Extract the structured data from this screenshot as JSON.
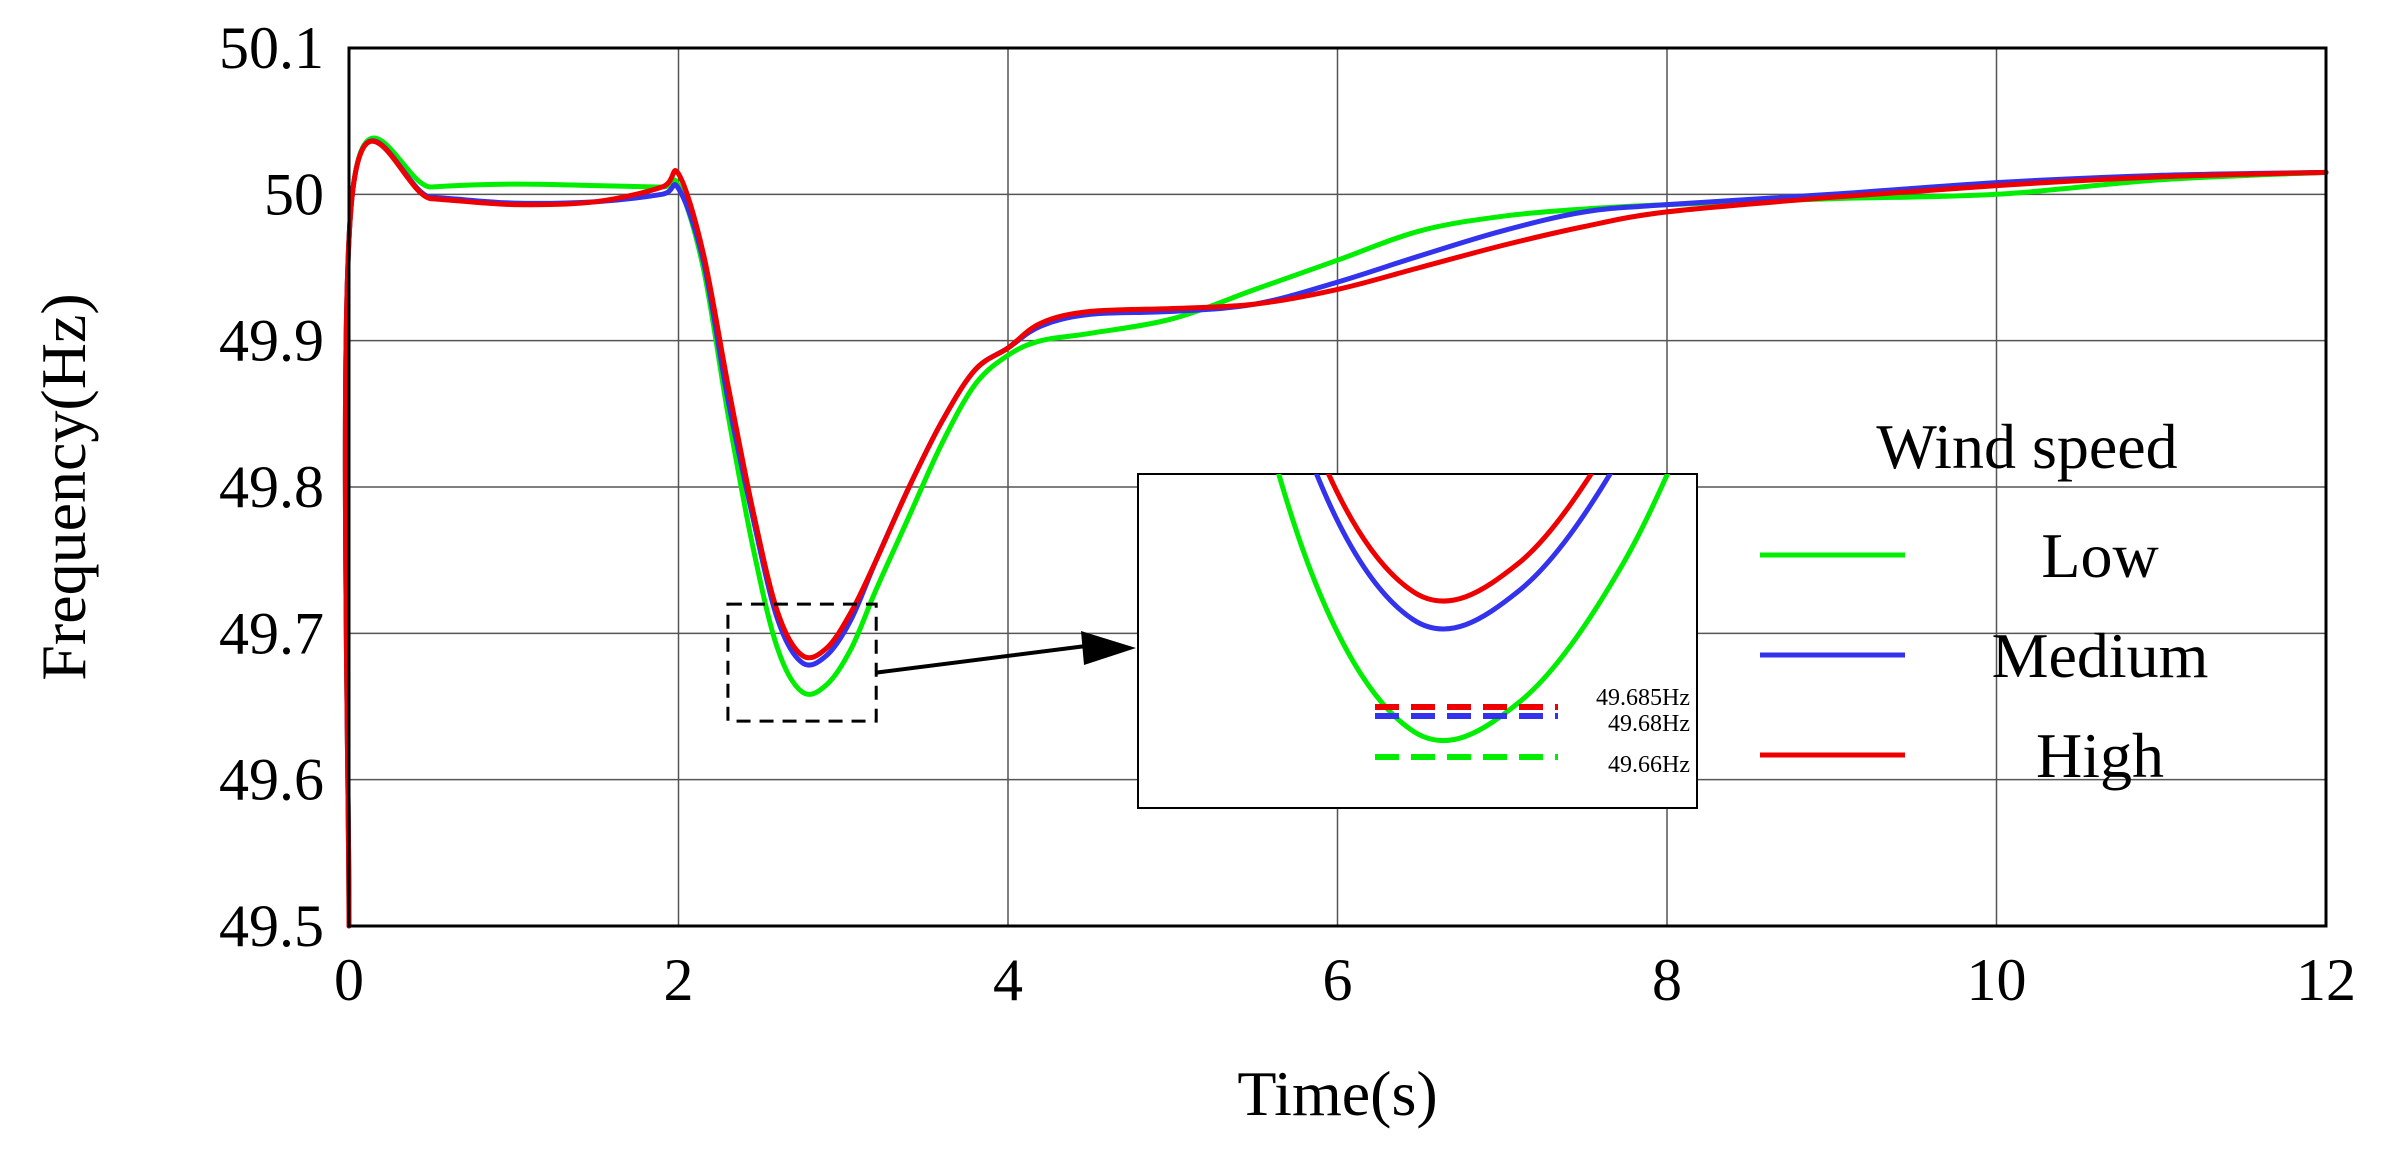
{
  "chart_data": {
    "type": "line",
    "xlabel": "Time(s)",
    "ylabel": "Frequency(Hz)",
    "xlim": [
      0,
      12
    ],
    "ylim": [
      49.5,
      50.1
    ],
    "xticks": [
      "0",
      "2",
      "4",
      "6",
      "8",
      "10",
      "12"
    ],
    "yticks": [
      "49.5",
      "49.6",
      "49.7",
      "49.8",
      "49.9",
      "50",
      "50.1"
    ],
    "grid": true,
    "legend": {
      "title": "Wind speed",
      "placement": "right",
      "entries": [
        "Low",
        "Medium",
        "High"
      ]
    },
    "series": [
      {
        "name": "Low",
        "color": "#00ee00",
        "x": [
          0,
          0.02,
          0.5,
          1,
          1.5,
          1.9,
          2.0,
          2.15,
          2.3,
          2.45,
          2.6,
          2.75,
          2.9,
          3.05,
          3.2,
          3.4,
          3.6,
          3.8,
          4.0,
          4.2,
          4.5,
          5.0,
          5.5,
          6.0,
          6.5,
          7.0,
          7.5,
          8.0,
          9.0,
          10.0,
          11.0,
          12.0
        ],
        "y": [
          49.5,
          50.0,
          50.005,
          50.007,
          50.006,
          50.005,
          50.006,
          49.95,
          49.85,
          49.76,
          49.69,
          49.66,
          49.665,
          49.69,
          49.73,
          49.78,
          49.83,
          49.87,
          49.89,
          49.9,
          49.905,
          49.915,
          49.935,
          49.955,
          49.975,
          49.985,
          49.99,
          49.993,
          49.997,
          50.0,
          50.01,
          50.015
        ]
      },
      {
        "name": "Medium",
        "color": "#3333ee",
        "x": [
          0,
          0.02,
          0.5,
          1,
          1.5,
          1.9,
          2.0,
          2.15,
          2.3,
          2.45,
          2.6,
          2.75,
          2.9,
          3.05,
          3.2,
          3.4,
          3.6,
          3.8,
          4.0,
          4.2,
          4.5,
          5.0,
          5.5,
          6.0,
          6.5,
          7.0,
          7.5,
          8.0,
          9.0,
          10.0,
          11.0,
          12.0
        ],
        "y": [
          49.5,
          50.0,
          49.998,
          49.994,
          49.995,
          50.0,
          50.004,
          49.955,
          49.86,
          49.78,
          49.71,
          49.68,
          49.685,
          49.71,
          49.75,
          49.8,
          49.845,
          49.88,
          49.895,
          49.91,
          49.918,
          49.92,
          49.925,
          49.94,
          49.958,
          49.975,
          49.988,
          49.993,
          50.0,
          50.008,
          50.013,
          50.015
        ]
      },
      {
        "name": "High",
        "color": "#ee0000",
        "x": [
          0,
          0.02,
          0.5,
          1,
          1.5,
          1.9,
          2.0,
          2.15,
          2.3,
          2.45,
          2.6,
          2.75,
          2.9,
          3.05,
          3.2,
          3.4,
          3.6,
          3.8,
          4.0,
          4.2,
          4.5,
          5.0,
          5.5,
          6.0,
          6.5,
          7.0,
          7.5,
          8.0,
          9.0,
          10.0,
          11.0,
          12.0
        ],
        "y": [
          49.5,
          50.0,
          49.997,
          49.993,
          49.995,
          50.005,
          50.014,
          49.96,
          49.87,
          49.785,
          49.715,
          49.685,
          49.69,
          49.715,
          49.75,
          49.8,
          49.845,
          49.88,
          49.895,
          49.912,
          49.92,
          49.922,
          49.925,
          49.935,
          49.95,
          49.965,
          49.978,
          49.988,
          49.998,
          50.006,
          50.012,
          50.015
        ]
      }
    ],
    "annotations": [
      {
        "series": "High",
        "text": "49.685Hz",
        "value": 49.685
      },
      {
        "series": "Medium",
        "text": "49.68Hz",
        "value": 49.68
      },
      {
        "series": "Low",
        "text": "49.66Hz",
        "value": 49.66
      }
    ],
    "inset": {
      "zoom_xlim": [
        2.3,
        3.2
      ],
      "zoom_ylim": [
        49.64,
        49.72
      ]
    }
  }
}
